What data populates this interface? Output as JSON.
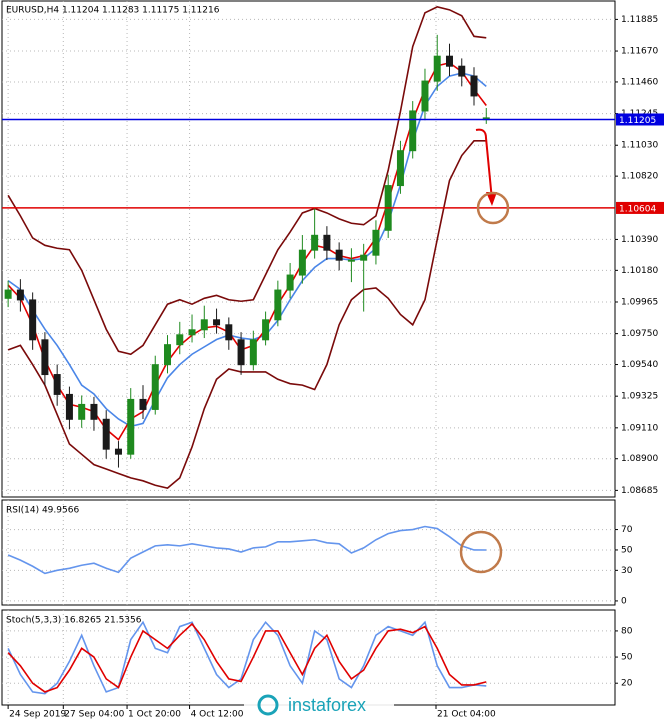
{
  "chart_data": [
    {
      "type": "candlestick",
      "title": "EURUSD,H4  1.11204 1.11283 1.11175 1.11216",
      "open": [
        1.0999,
        1.10046,
        1.09979,
        1.09708,
        1.09472,
        1.09337,
        1.09168,
        1.09269,
        1.09168,
        1.08965,
        1.08931,
        1.09303,
        1.09235,
        1.09539,
        1.09675,
        1.09742,
        1.09776,
        1.09844,
        1.0981,
        1.09708,
        1.09539,
        1.09708,
        1.09844,
        1.10046,
        1.10148,
        1.10317,
        1.10418,
        1.10317,
        1.10249,
        1.10249,
        1.10283,
        1.10452,
        1.10756,
        1.10993,
        1.11263,
        1.11466,
        1.11635,
        1.11567,
        1.115,
        1.11204
      ],
      "high": [
        1.1011,
        1.1012,
        1.1003,
        1.0976,
        1.0954,
        1.0939,
        1.0933,
        1.0932,
        1.0923,
        1.0902,
        1.0938,
        1.094,
        1.096,
        1.0974,
        1.0983,
        1.0988,
        1.0994,
        1.0992,
        1.0986,
        1.0976,
        1.0977,
        1.099,
        1.1011,
        1.1023,
        1.1042,
        1.106,
        1.1048,
        1.1037,
        1.1033,
        1.1036,
        1.1052,
        1.1083,
        1.1106,
        1.1133,
        1.1155,
        1.1178,
        1.1172,
        1.1162,
        1.1156,
        1.11283
      ],
      "low": [
        1.0993,
        1.099,
        1.0964,
        1.094,
        1.0926,
        1.091,
        1.0911,
        1.0909,
        1.089,
        1.0884,
        1.089,
        1.0917,
        1.092,
        1.0948,
        1.0961,
        1.0969,
        1.0972,
        1.0975,
        1.0964,
        1.0947,
        1.095,
        1.0967,
        1.098,
        1.0999,
        1.1009,
        1.1026,
        1.1025,
        1.1018,
        1.101,
        1.099,
        1.1022,
        1.104,
        1.107,
        1.1094,
        1.112,
        1.114,
        1.115,
        1.1143,
        1.113,
        1.11175
      ],
      "close": [
        1.10046,
        1.09979,
        1.09708,
        1.09472,
        1.09337,
        1.09168,
        1.09269,
        1.09168,
        1.08965,
        1.08931,
        1.09303,
        1.09235,
        1.09539,
        1.09675,
        1.09742,
        1.09776,
        1.09844,
        1.0981,
        1.09708,
        1.09539,
        1.09708,
        1.09844,
        1.10046,
        1.10148,
        1.10317,
        1.10418,
        1.10317,
        1.10249,
        1.10249,
        1.10283,
        1.10452,
        1.10756,
        1.10993,
        1.11263,
        1.11466,
        1.11635,
        1.11567,
        1.115,
        1.11365,
        1.11216
      ],
      "up_color": "#1f8a1f",
      "down_color": "#1a1a1a",
      "series": [
        {
          "color": "#7a0a0a",
          "values": [
            1.1069,
            1.1055,
            1.104,
            1.1035,
            1.1033,
            1.1032,
            1.1018,
            1.0998,
            1.0978,
            1.0963,
            1.0961,
            1.0967,
            1.0981,
            1.0995,
            1.0998,
            1.0995,
            1.0999,
            1.1001,
            1.0998,
            1.0997,
            1.0998,
            1.1015,
            1.1032,
            1.1044,
            1.1057,
            1.106,
            1.1057,
            1.1053,
            1.105,
            1.1049,
            1.1055,
            1.1086,
            1.1126,
            1.117,
            1.1193,
            1.1197,
            1.1195,
            1.1191,
            1.1177,
            1.1176
          ]
        },
        {
          "color": "#7a0a0a",
          "values": [
            1.0964,
            1.0967,
            1.0954,
            1.094,
            1.092,
            1.09,
            1.0893,
            1.0886,
            1.0883,
            1.088,
            1.0877,
            1.0875,
            1.0872,
            1.087,
            1.0877,
            1.0898,
            1.0924,
            1.0944,
            1.0951,
            1.0949,
            1.0949,
            1.0949,
            1.0944,
            1.0941,
            1.094,
            1.0937,
            1.0954,
            1.0981,
            1.0998,
            1.1005,
            1.1006,
            1.0999,
            1.0988,
            1.0981,
            1.0998,
            1.1039,
            1.1079,
            1.1096,
            1.1106,
            1.1106
          ]
        },
        {
          "color": "#4a86e8",
          "values": [
            1.1011,
            1.1005,
            1.0991,
            1.0978,
            1.0967,
            1.0954,
            1.094,
            1.0934,
            1.0924,
            1.0917,
            1.0912,
            1.0914,
            1.093,
            1.0945,
            1.0954,
            1.0961,
            1.0966,
            1.0971,
            1.0974,
            1.0972,
            1.0971,
            1.0974,
            1.0984,
            1.0998,
            1.1011,
            1.102,
            1.1026,
            1.1026,
            1.1025,
            1.1026,
            1.1033,
            1.1051,
            1.1076,
            1.1106,
            1.113,
            1.1143,
            1.115,
            1.1152,
            1.115,
            1.1143
          ]
        },
        {
          "color": "#e00000",
          "values": [
            1.1008,
            1.0999,
            1.0981,
            1.0957,
            1.094,
            1.0927,
            1.0925,
            1.0922,
            1.091,
            1.0903,
            1.0917,
            1.0922,
            1.094,
            1.0956,
            1.0967,
            1.0974,
            1.0979,
            1.098,
            1.0976,
            1.0964,
            1.0967,
            1.0978,
            1.0995,
            1.1008,
            1.1023,
            1.1035,
            1.1033,
            1.1028,
            1.1026,
            1.1028,
            1.104,
            1.1065,
            1.1093,
            1.112,
            1.1141,
            1.1157,
            1.1159,
            1.1153,
            1.1141,
            1.113
          ]
        }
      ],
      "levels": [
        {
          "value": 1.11205,
          "color": "#0000e0"
        },
        {
          "value": 1.10604,
          "color": "#e00000"
        }
      ],
      "xlim": [
        -0.5,
        49.5
      ],
      "xticks": [
        {
          "value": 0,
          "label": "24 Sep 2019"
        },
        {
          "value": 4.5,
          "label": "27 Sep 04:00"
        },
        {
          "value": 9.7,
          "label": "1 Oct 20:00"
        },
        {
          "value": 14.8,
          "label": "4 Oct 12:00"
        },
        {
          "value": 34.9,
          "label": "21 Oct 04:00"
        }
      ],
      "ylim": [
        1.0864,
        1.1201
      ],
      "yticks": [
        1.11885,
        {
          "value": 1.1167,
          "label": "1.11670"
        },
        {
          "value": 1.1146,
          "label": "1.11460"
        },
        1.11245,
        {
          "value": 1.1103,
          "label": "1.11030"
        },
        {
          "value": 1.1082,
          "label": "1.10820"
        },
        {
          "value": 1.1039,
          "label": "1.10390"
        },
        {
          "value": 1.1018,
          "label": "1.10180"
        },
        1.09965,
        {
          "value": 1.0975,
          "label": "1.09750"
        },
        {
          "value": 1.0954,
          "label": "1.09540"
        },
        1.09325,
        {
          "value": 1.0911,
          "label": "1.09110"
        },
        {
          "value": 1.089,
          "label": "1.08900"
        },
        1.08685
      ],
      "grid": true,
      "watermark": "instaforex"
    },
    {
      "type": "line",
      "title": "RSI(14) 49.9566",
      "series": [
        {
          "color": "#6495ed",
          "values": [
            45,
            40,
            34,
            27,
            30,
            32,
            35,
            37,
            32,
            28,
            42,
            48,
            54,
            55,
            54,
            56,
            54,
            52,
            51,
            48,
            52,
            53,
            58,
            58,
            59,
            60,
            57,
            56,
            47,
            52,
            60,
            66,
            69,
            70,
            73,
            71,
            63,
            54,
            50,
            49.9566
          ]
        }
      ],
      "ylim": [
        -4,
        99
      ],
      "yticks": [
        70,
        50,
        30,
        0
      ],
      "grid": true
    },
    {
      "type": "line",
      "title": "Stoch(5,3,3) 16.8265 21.5356",
      "series": [
        {
          "color": "#6495ed",
          "values": [
            60,
            30,
            10,
            8,
            20,
            45,
            75,
            40,
            10,
            15,
            70,
            90,
            60,
            55,
            85,
            90,
            60,
            30,
            15,
            25,
            70,
            90,
            75,
            40,
            20,
            80,
            70,
            25,
            15,
            40,
            75,
            85,
            80,
            75,
            90,
            40,
            15,
            15,
            18,
            16.8265
          ]
        },
        {
          "color": "#e00000",
          "values": [
            55,
            40,
            20,
            10,
            15,
            35,
            60,
            50,
            25,
            15,
            50,
            80,
            70,
            60,
            75,
            88,
            70,
            45,
            25,
            22,
            50,
            80,
            80,
            55,
            30,
            60,
            75,
            45,
            25,
            35,
            60,
            80,
            82,
            78,
            85,
            60,
            30,
            18,
            18,
            21.5356
          ]
        }
      ],
      "ylim": [
        -5,
        104
      ],
      "yticks": [
        80,
        50,
        20
      ],
      "grid": true
    }
  ]
}
